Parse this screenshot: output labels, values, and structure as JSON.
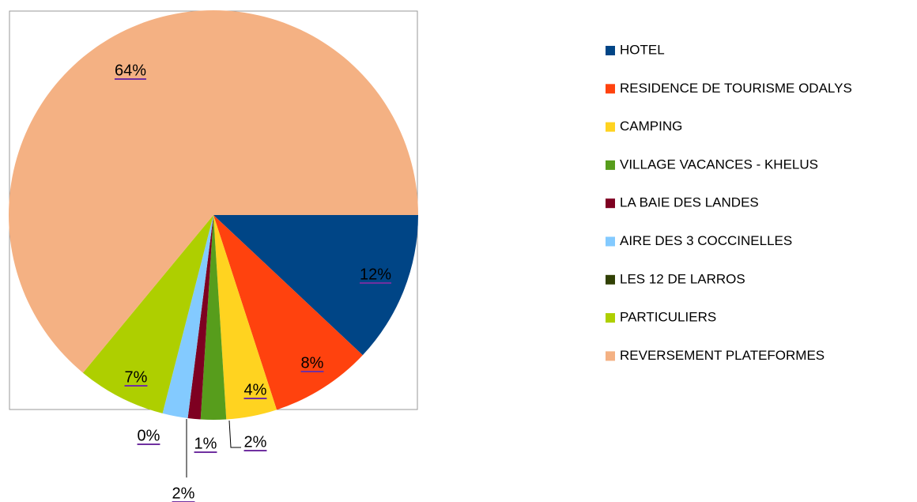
{
  "chart_data": {
    "type": "pie",
    "categories": [
      "HOTEL",
      "RESIDENCE DE TOURISME ODALYS",
      "CAMPING",
      "VILLAGE VACANCES - KHELUS",
      "LA BAIE DES LANDES",
      "AIRE DES 3 COCCINELLES",
      "LES 12 DE LARROS",
      "PARTICULIERS",
      "REVERSEMENT PLATEFORMES"
    ],
    "values": [
      12,
      8,
      4,
      2,
      1,
      2,
      0,
      7,
      64
    ],
    "value_labels": [
      "12%",
      "8%",
      "4%",
      "2%",
      "1%",
      "2%",
      "0%",
      "7%",
      "64%"
    ],
    "colors": [
      "#004586",
      "#ff420e",
      "#ffd320",
      "#579d1c",
      "#7e0021",
      "#83caff",
      "#314004",
      "#aecf00",
      "#f4b183"
    ],
    "legend": "right"
  }
}
